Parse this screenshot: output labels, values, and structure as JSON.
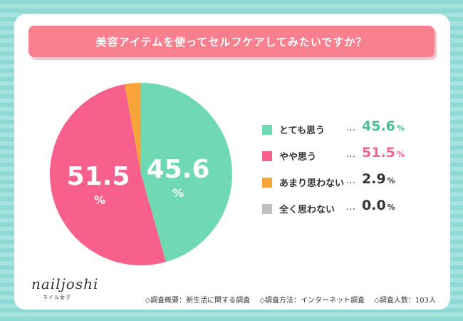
{
  "chart_data": {
    "type": "pie",
    "title": "美容アイテムを使ってセルフケアしてみたいですか？",
    "categories": [
      "とても思う",
      "やや思う",
      "あまり思わない",
      "全く思わない"
    ],
    "values": [
      45.6,
      51.5,
      2.9,
      0.0
    ],
    "unit": "%",
    "colors": [
      "#6fd9b4",
      "#f7608a",
      "#f9a43a",
      "#c0c0c0"
    ],
    "legend_position": "right"
  },
  "legend": {
    "dots": "…",
    "unit": "%",
    "items": [
      {
        "label": "とても思う",
        "value": "45.6",
        "color": "#47bf8f"
      },
      {
        "label": "やや思う",
        "value": "51.5",
        "color": "#f0648a"
      },
      {
        "label": "あまり思わない",
        "value": "2.9",
        "color": "#333333"
      },
      {
        "label": "全く思わない",
        "value": "0.0",
        "color": "#333333"
      }
    ]
  },
  "slice_labels": {
    "first": {
      "value": "45.6",
      "unit": "%"
    },
    "second": {
      "value": "51.5",
      "unit": "%"
    }
  },
  "brand": {
    "logo": "nailjoshi",
    "subtitle": "ネイル女子"
  },
  "footer": {
    "overview": "◇調査概要：新生活に関する調査",
    "method": "◇調査方法：インターネット調査",
    "count": "◇調査人数：103人"
  }
}
